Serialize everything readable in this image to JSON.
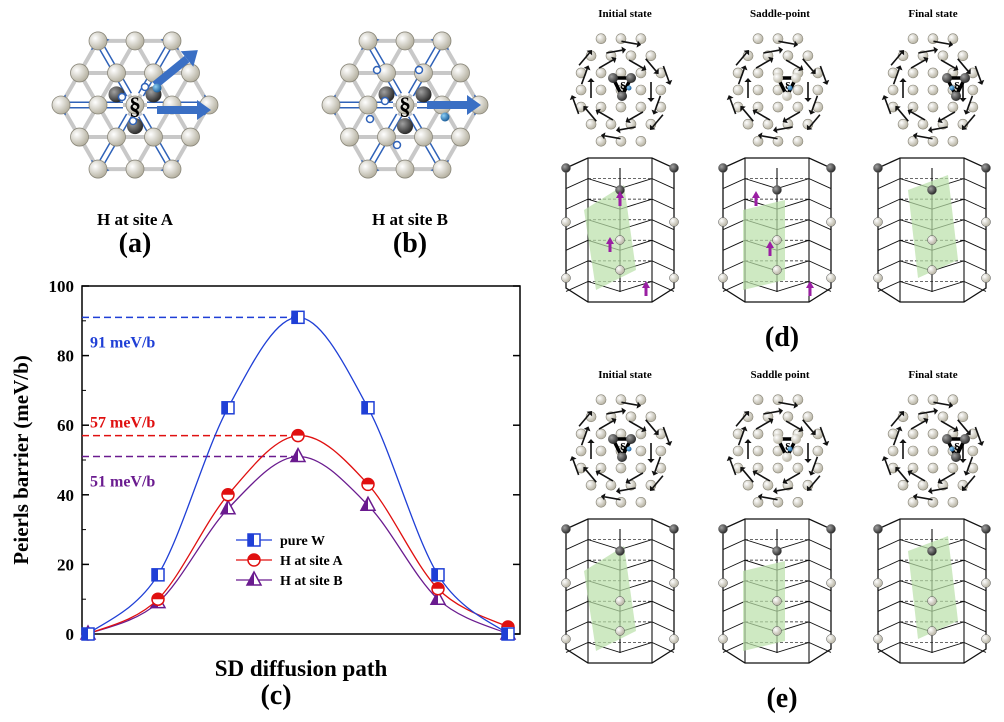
{
  "panels": {
    "a": {
      "letter": "(a)",
      "caption": "H at site A"
    },
    "b": {
      "letter": "(b)",
      "caption": "H at site B"
    },
    "c": {
      "letter": "(c)"
    },
    "d": {
      "letter": "(d)",
      "states": [
        "Initial state",
        "Saddle-point",
        "Final state"
      ]
    },
    "e": {
      "letter": "(e)",
      "states": [
        "Initial state",
        "Saddle point",
        "Final state"
      ]
    }
  },
  "atom_symbol": "§",
  "colors": {
    "pure": "#1f3fd6",
    "siteA": "#e01010",
    "siteB": "#6a1b8f",
    "arrow_blue": "#3a6fc4",
    "plane_green": "#b9e0a8"
  },
  "chart_data": {
    "type": "line",
    "xlabel": "SD diffusion path",
    "ylabel": "Peierls barrier (meV/b)",
    "ylim": [
      0,
      100
    ],
    "yticks": [
      0,
      20,
      40,
      60,
      80,
      100
    ],
    "x": [
      0,
      1,
      2,
      3,
      4,
      5,
      6
    ],
    "series": [
      {
        "name": "pure W",
        "values": [
          0,
          17,
          65,
          91,
          65,
          17,
          0
        ],
        "color": "#1f3fd6",
        "marker": "square"
      },
      {
        "name": "H at site A",
        "values": [
          0,
          10,
          40,
          57,
          43,
          13,
          2
        ],
        "color": "#e01010",
        "marker": "circle"
      },
      {
        "name": "H at site B",
        "values": [
          0,
          9,
          36,
          51,
          37,
          10,
          0
        ],
        "color": "#6a1b8f",
        "marker": "triangle"
      }
    ],
    "annotations": [
      {
        "text": "91 meV/b",
        "value": 91,
        "color": "#1f3fd6"
      },
      {
        "text": "57 meV/b",
        "value": 57,
        "color": "#e01010"
      },
      {
        "text": "51 meV/b",
        "value": 51,
        "color": "#6a1b8f"
      }
    ],
    "legend": "bottom-center"
  }
}
